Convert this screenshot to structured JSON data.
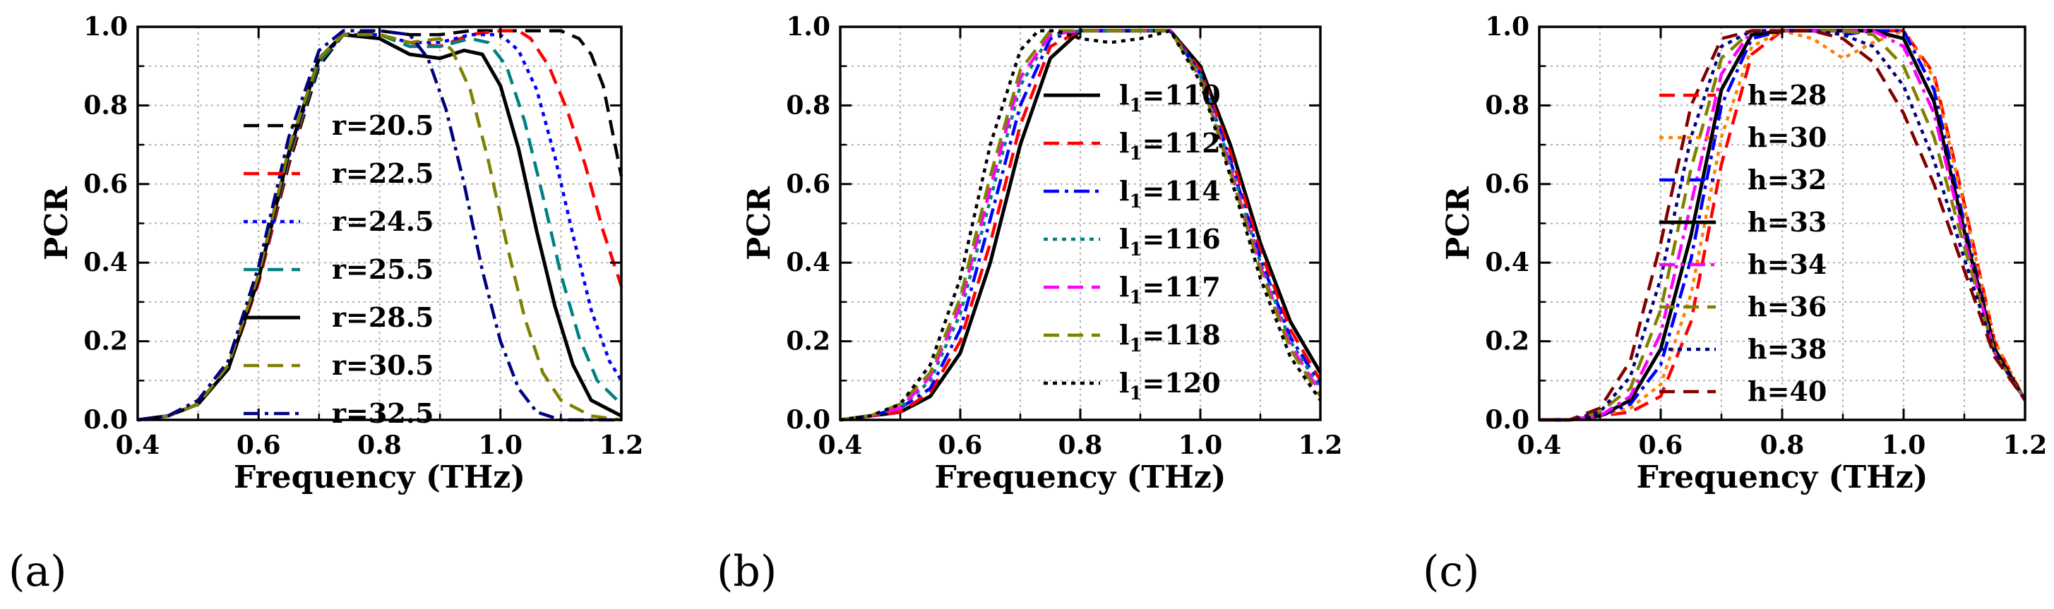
{
  "chart_data": [
    {
      "type": "line",
      "caption": "(a)",
      "xlabel": "Frequency (THz)",
      "ylabel": "PCR",
      "xlim": [
        0.4,
        1.2
      ],
      "ylim": [
        0.0,
        1.0
      ],
      "xticks": [
        "0.4",
        "0.6",
        "0.8",
        "1.0",
        "1.2"
      ],
      "yticks": [
        "0.0",
        "0.2",
        "0.4",
        "0.6",
        "0.8",
        "1.0"
      ],
      "grid": true,
      "legend_position": "center-left",
      "series": [
        {
          "name": "r=20.5",
          "color": "#000000",
          "dash": "dash",
          "x": [
            0.4,
            0.45,
            0.5,
            0.55,
            0.6,
            0.65,
            0.7,
            0.74,
            0.8,
            0.85,
            0.9,
            0.95,
            1.0,
            1.05,
            1.1,
            1.13,
            1.15,
            1.17,
            1.2
          ],
          "y": [
            0.0,
            0.01,
            0.04,
            0.13,
            0.35,
            0.65,
            0.9,
            0.98,
            0.99,
            0.98,
            0.98,
            0.99,
            0.99,
            0.99,
            0.99,
            0.97,
            0.93,
            0.85,
            0.62
          ]
        },
        {
          "name": "r=22.5",
          "color": "#ff0000",
          "dash": "dash",
          "x": [
            0.4,
            0.45,
            0.5,
            0.55,
            0.6,
            0.65,
            0.7,
            0.74,
            0.8,
            0.85,
            0.9,
            0.95,
            1.0,
            1.03,
            1.05,
            1.08,
            1.11,
            1.14,
            1.17,
            1.2
          ],
          "y": [
            0.0,
            0.01,
            0.04,
            0.13,
            0.35,
            0.66,
            0.91,
            0.98,
            0.98,
            0.96,
            0.95,
            0.98,
            0.99,
            0.99,
            0.97,
            0.9,
            0.79,
            0.65,
            0.48,
            0.34
          ]
        },
        {
          "name": "r=24.5",
          "color": "#0000ff",
          "dash": "dot",
          "x": [
            0.4,
            0.45,
            0.5,
            0.55,
            0.6,
            0.65,
            0.7,
            0.74,
            0.8,
            0.85,
            0.9,
            0.95,
            1.0,
            1.03,
            1.06,
            1.09,
            1.12,
            1.15,
            1.18,
            1.2
          ],
          "y": [
            0.0,
            0.01,
            0.04,
            0.13,
            0.36,
            0.67,
            0.91,
            0.98,
            0.98,
            0.96,
            0.96,
            0.98,
            0.98,
            0.94,
            0.84,
            0.67,
            0.47,
            0.28,
            0.15,
            0.1
          ]
        },
        {
          "name": "r=25.5",
          "color": "#008080",
          "dash": "dash",
          "x": [
            0.4,
            0.45,
            0.5,
            0.55,
            0.6,
            0.65,
            0.7,
            0.74,
            0.8,
            0.85,
            0.9,
            0.95,
            0.98,
            1.01,
            1.04,
            1.07,
            1.1,
            1.13,
            1.16,
            1.2
          ],
          "y": [
            0.0,
            0.01,
            0.04,
            0.13,
            0.36,
            0.67,
            0.91,
            0.98,
            0.98,
            0.95,
            0.95,
            0.97,
            0.96,
            0.9,
            0.76,
            0.57,
            0.37,
            0.21,
            0.1,
            0.04
          ]
        },
        {
          "name": "r=28.5",
          "color": "#000000",
          "dash": "solid",
          "x": [
            0.4,
            0.45,
            0.5,
            0.55,
            0.6,
            0.65,
            0.7,
            0.74,
            0.8,
            0.85,
            0.9,
            0.94,
            0.97,
            1.0,
            1.03,
            1.06,
            1.09,
            1.12,
            1.15,
            1.2
          ],
          "y": [
            0.0,
            0.01,
            0.04,
            0.13,
            0.36,
            0.68,
            0.92,
            0.98,
            0.97,
            0.93,
            0.92,
            0.94,
            0.93,
            0.85,
            0.69,
            0.48,
            0.29,
            0.14,
            0.05,
            0.01
          ]
        },
        {
          "name": "r=30.5",
          "color": "#808000",
          "dash": "dash",
          "x": [
            0.4,
            0.45,
            0.5,
            0.55,
            0.6,
            0.65,
            0.7,
            0.74,
            0.8,
            0.85,
            0.9,
            0.92,
            0.95,
            0.98,
            1.01,
            1.04,
            1.07,
            1.1,
            1.15,
            1.2
          ],
          "y": [
            0.0,
            0.01,
            0.04,
            0.14,
            0.37,
            0.69,
            0.92,
            0.98,
            0.98,
            0.96,
            0.97,
            0.94,
            0.84,
            0.66,
            0.45,
            0.26,
            0.12,
            0.05,
            0.01,
            0.0
          ]
        },
        {
          "name": "r=32.5",
          "color": "#000080",
          "dash": "dashdot",
          "x": [
            0.4,
            0.45,
            0.5,
            0.55,
            0.6,
            0.65,
            0.7,
            0.74,
            0.8,
            0.85,
            0.88,
            0.91,
            0.94,
            0.97,
            1.0,
            1.03,
            1.06,
            1.1,
            1.2
          ],
          "y": [
            0.0,
            0.01,
            0.05,
            0.15,
            0.39,
            0.72,
            0.94,
            0.99,
            0.99,
            0.98,
            0.92,
            0.79,
            0.6,
            0.38,
            0.2,
            0.08,
            0.02,
            0.0,
            0.0
          ]
        }
      ]
    },
    {
      "type": "line",
      "caption": "(b)",
      "xlabel": "Frequency (THz)",
      "ylabel": "PCR",
      "xlim": [
        0.4,
        1.2
      ],
      "ylim": [
        0.0,
        1.0
      ],
      "xticks": [
        "0.4",
        "0.6",
        "0.8",
        "1.0",
        "1.2"
      ],
      "yticks": [
        "0.0",
        "0.2",
        "0.4",
        "0.6",
        "0.8",
        "1.0"
      ],
      "grid": true,
      "legend_position": "center-left",
      "legend_label_main": "l",
      "legend_label_sub": "1",
      "series": [
        {
          "name": "=110",
          "color": "#000000",
          "dash": "solid",
          "x": [
            0.4,
            0.45,
            0.5,
            0.55,
            0.6,
            0.65,
            0.7,
            0.75,
            0.8,
            0.85,
            0.9,
            0.95,
            1.0,
            1.05,
            1.1,
            1.15,
            1.2
          ],
          "y": [
            0.0,
            0.01,
            0.02,
            0.06,
            0.17,
            0.4,
            0.7,
            0.92,
            0.99,
            0.99,
            0.99,
            0.99,
            0.9,
            0.7,
            0.45,
            0.25,
            0.12
          ]
        },
        {
          "name": "=112",
          "color": "#ff0000",
          "dash": "dash",
          "x": [
            0.4,
            0.45,
            0.5,
            0.55,
            0.6,
            0.65,
            0.7,
            0.75,
            0.8,
            0.85,
            0.9,
            0.95,
            1.0,
            1.05,
            1.1,
            1.15,
            1.2
          ],
          "y": [
            0.0,
            0.01,
            0.02,
            0.07,
            0.2,
            0.45,
            0.75,
            0.95,
            0.99,
            0.99,
            0.99,
            0.99,
            0.89,
            0.68,
            0.43,
            0.23,
            0.1
          ]
        },
        {
          "name": "=114",
          "color": "#0000ff",
          "dash": "dashdot",
          "x": [
            0.4,
            0.45,
            0.5,
            0.55,
            0.6,
            0.65,
            0.7,
            0.75,
            0.8,
            0.85,
            0.9,
            0.95,
            1.0,
            1.05,
            1.1,
            1.15,
            1.2
          ],
          "y": [
            0.0,
            0.01,
            0.03,
            0.08,
            0.23,
            0.51,
            0.8,
            0.97,
            0.99,
            0.99,
            0.99,
            0.99,
            0.88,
            0.66,
            0.41,
            0.21,
            0.09
          ]
        },
        {
          "name": "=116",
          "color": "#008080",
          "dash": "dot",
          "x": [
            0.4,
            0.45,
            0.5,
            0.55,
            0.6,
            0.65,
            0.7,
            0.75,
            0.8,
            0.85,
            0.9,
            0.95,
            1.0,
            1.05,
            1.1,
            1.15,
            1.2
          ],
          "y": [
            0.0,
            0.01,
            0.03,
            0.1,
            0.27,
            0.56,
            0.85,
            0.98,
            0.99,
            0.99,
            0.99,
            0.99,
            0.88,
            0.65,
            0.4,
            0.2,
            0.08
          ]
        },
        {
          "name": "=117",
          "color": "#ff00ff",
          "dash": "dash",
          "x": [
            0.4,
            0.45,
            0.5,
            0.55,
            0.6,
            0.65,
            0.7,
            0.75,
            0.8,
            0.85,
            0.9,
            0.95,
            1.0,
            1.05,
            1.1,
            1.15,
            1.2
          ],
          "y": [
            0.0,
            0.01,
            0.03,
            0.11,
            0.29,
            0.59,
            0.87,
            0.98,
            0.99,
            0.99,
            0.99,
            0.99,
            0.87,
            0.64,
            0.39,
            0.19,
            0.07
          ]
        },
        {
          "name": "=118",
          "color": "#808000",
          "dash": "dash",
          "x": [
            0.4,
            0.45,
            0.5,
            0.55,
            0.6,
            0.65,
            0.7,
            0.75,
            0.8,
            0.85,
            0.9,
            0.95,
            1.0,
            1.05,
            1.1,
            1.15,
            1.2
          ],
          "y": [
            0.0,
            0.01,
            0.04,
            0.12,
            0.31,
            0.62,
            0.89,
            0.99,
            0.99,
            0.99,
            0.99,
            0.99,
            0.87,
            0.63,
            0.38,
            0.18,
            0.06
          ]
        },
        {
          "name": "=120",
          "color": "#000000",
          "dash": "dot",
          "x": [
            0.4,
            0.45,
            0.5,
            0.55,
            0.6,
            0.65,
            0.7,
            0.73,
            0.76,
            0.8,
            0.85,
            0.9,
            0.95,
            1.0,
            1.05,
            1.1,
            1.15,
            1.2
          ],
          "y": [
            0.0,
            0.01,
            0.04,
            0.14,
            0.36,
            0.7,
            0.94,
            0.99,
            0.99,
            0.97,
            0.96,
            0.97,
            0.99,
            0.86,
            0.62,
            0.36,
            0.16,
            0.05
          ]
        }
      ]
    },
    {
      "type": "line",
      "caption": "(c)",
      "xlabel": "Frequency (THz)",
      "ylabel": "PCR",
      "xlim": [
        0.4,
        1.2
      ],
      "ylim": [
        0.0,
        1.0
      ],
      "xticks": [
        "0.4",
        "0.6",
        "0.8",
        "1.0",
        "1.2"
      ],
      "yticks": [
        "0.0",
        "0.2",
        "0.4",
        "0.6",
        "0.8",
        "1.0"
      ],
      "grid": true,
      "legend_position": "center-left",
      "series": [
        {
          "name": "h=28",
          "color": "#ff0000",
          "dash": "dash",
          "x": [
            0.4,
            0.45,
            0.5,
            0.55,
            0.6,
            0.65,
            0.7,
            0.75,
            0.8,
            0.85,
            0.9,
            0.95,
            1.0,
            1.05,
            1.1,
            1.15,
            1.2
          ],
          "y": [
            0.0,
            0.0,
            0.01,
            0.02,
            0.06,
            0.25,
            0.65,
            0.93,
            0.99,
            0.99,
            0.99,
            0.99,
            0.99,
            0.88,
            0.55,
            0.2,
            0.05
          ]
        },
        {
          "name": "h=30",
          "color": "#ff8000",
          "dash": "dot",
          "x": [
            0.4,
            0.45,
            0.5,
            0.55,
            0.6,
            0.65,
            0.7,
            0.75,
            0.8,
            0.85,
            0.9,
            0.95,
            1.0,
            1.05,
            1.1,
            1.15,
            1.2
          ],
          "y": [
            0.0,
            0.0,
            0.01,
            0.03,
            0.09,
            0.32,
            0.72,
            0.95,
            0.99,
            0.97,
            0.92,
            0.96,
            0.99,
            0.87,
            0.54,
            0.2,
            0.05
          ]
        },
        {
          "name": "h=32",
          "color": "#0000ff",
          "dash": "dashdot",
          "x": [
            0.4,
            0.45,
            0.5,
            0.55,
            0.6,
            0.65,
            0.7,
            0.75,
            0.8,
            0.85,
            0.9,
            0.95,
            1.0,
            1.05,
            1.1,
            1.15,
            1.2
          ],
          "y": [
            0.0,
            0.0,
            0.01,
            0.04,
            0.14,
            0.41,
            0.8,
            0.97,
            0.99,
            0.99,
            0.98,
            0.99,
            0.99,
            0.84,
            0.5,
            0.18,
            0.05
          ]
        },
        {
          "name": "h=33",
          "color": "#000000",
          "dash": "solid",
          "x": [
            0.4,
            0.45,
            0.5,
            0.55,
            0.6,
            0.65,
            0.7,
            0.75,
            0.8,
            0.85,
            0.9,
            0.95,
            1.0,
            1.05,
            1.1,
            1.15,
            1.2
          ],
          "y": [
            0.0,
            0.0,
            0.01,
            0.05,
            0.18,
            0.47,
            0.84,
            0.98,
            0.99,
            0.99,
            0.99,
            0.99,
            0.97,
            0.81,
            0.48,
            0.18,
            0.05
          ]
        },
        {
          "name": "h=34",
          "color": "#ff00ff",
          "dash": "dashdot",
          "x": [
            0.4,
            0.45,
            0.5,
            0.55,
            0.6,
            0.65,
            0.7,
            0.75,
            0.8,
            0.85,
            0.9,
            0.95,
            1.0,
            1.05,
            1.1,
            1.15,
            1.2
          ],
          "y": [
            0.0,
            0.0,
            0.01,
            0.06,
            0.22,
            0.55,
            0.88,
            0.99,
            0.99,
            0.99,
            0.99,
            0.99,
            0.95,
            0.78,
            0.46,
            0.17,
            0.05
          ]
        },
        {
          "name": "h=36",
          "color": "#808000",
          "dash": "dash",
          "x": [
            0.4,
            0.45,
            0.5,
            0.55,
            0.6,
            0.65,
            0.7,
            0.75,
            0.8,
            0.85,
            0.9,
            0.95,
            1.0,
            1.05,
            1.1,
            1.15,
            1.2
          ],
          "y": [
            0.0,
            0.0,
            0.02,
            0.08,
            0.28,
            0.64,
            0.92,
            0.99,
            0.99,
            0.99,
            0.99,
            0.98,
            0.9,
            0.72,
            0.44,
            0.17,
            0.05
          ]
        },
        {
          "name": "h=38",
          "color": "#000080",
          "dash": "dot",
          "x": [
            0.4,
            0.45,
            0.5,
            0.55,
            0.6,
            0.65,
            0.7,
            0.75,
            0.8,
            0.85,
            0.9,
            0.95,
            1.0,
            1.05,
            1.1,
            1.15,
            1.2
          ],
          "y": [
            0.0,
            0.0,
            0.02,
            0.11,
            0.36,
            0.72,
            0.95,
            0.99,
            0.99,
            0.99,
            0.98,
            0.95,
            0.85,
            0.66,
            0.41,
            0.17,
            0.05
          ]
        },
        {
          "name": "h=40",
          "color": "#800000",
          "dash": "dash",
          "x": [
            0.4,
            0.45,
            0.5,
            0.55,
            0.6,
            0.65,
            0.7,
            0.75,
            0.8,
            0.85,
            0.9,
            0.95,
            1.0,
            1.05,
            1.1,
            1.15,
            1.2
          ],
          "y": [
            0.0,
            0.0,
            0.03,
            0.15,
            0.45,
            0.8,
            0.97,
            0.99,
            0.99,
            0.99,
            0.97,
            0.91,
            0.78,
            0.6,
            0.38,
            0.16,
            0.05
          ]
        }
      ]
    }
  ]
}
